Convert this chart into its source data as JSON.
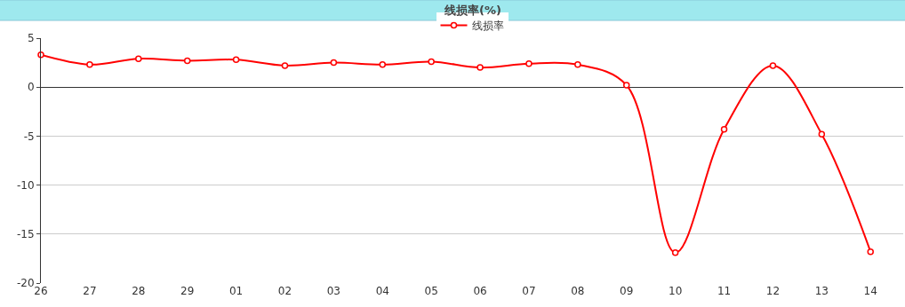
{
  "chart_data": {
    "type": "line",
    "title": "线损率(%)",
    "categories": [
      "26",
      "27",
      "28",
      "29",
      "01",
      "02",
      "03",
      "04",
      "05",
      "06",
      "07",
      "08",
      "09",
      "10",
      "11",
      "12",
      "13",
      "14"
    ],
    "series": [
      {
        "name": "线损率",
        "color": "#ff0000",
        "values": [
          3.3,
          2.3,
          2.9,
          2.7,
          2.8,
          2.2,
          2.5,
          2.3,
          2.6,
          2.0,
          2.4,
          2.3,
          0.2,
          -16.9,
          -4.3,
          2.2,
          -4.8,
          -16.8
        ]
      }
    ],
    "ylim": [
      -20,
      5
    ],
    "yticks": [
      -20,
      -15,
      -10,
      -5,
      0,
      5
    ],
    "grid": "y",
    "legend": "top",
    "marker": "circle",
    "line_style": "solid"
  }
}
